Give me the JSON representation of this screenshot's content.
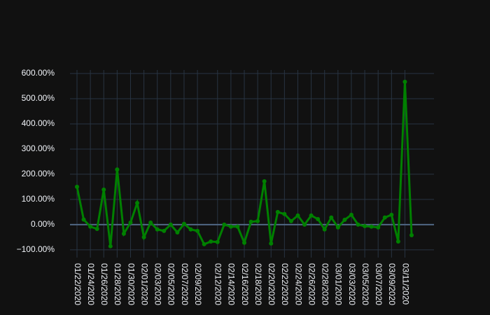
{
  "chart_data": {
    "type": "line",
    "x": [
      "01/22/2020",
      "01/23/2020",
      "01/24/2020",
      "01/25/2020",
      "01/26/2020",
      "01/27/2020",
      "01/28/2020",
      "01/29/2020",
      "01/30/2020",
      "01/31/2020",
      "02/01/2020",
      "02/02/2020",
      "02/03/2020",
      "02/04/2020",
      "02/05/2020",
      "02/06/2020",
      "02/07/2020",
      "02/08/2020",
      "02/09/2020",
      "02/10/2020",
      "02/11/2020",
      "02/12/2020",
      "02/13/2020",
      "02/14/2020",
      "02/15/2020",
      "02/16/2020",
      "02/17/2020",
      "02/18/2020",
      "02/19/2020",
      "02/20/2020",
      "02/21/2020",
      "02/22/2020",
      "02/23/2020",
      "02/24/2020",
      "02/25/2020",
      "02/26/2020",
      "02/27/2020",
      "02/28/2020",
      "02/29/2020",
      "03/01/2020",
      "03/02/2020",
      "03/03/2020",
      "03/04/2020",
      "03/05/2020",
      "03/06/2020",
      "03/07/2020",
      "03/08/2020",
      "03/09/2020",
      "03/10/2020",
      "03/11/2020",
      "03/12/2020"
    ],
    "series": [
      {
        "color": "#008000",
        "values": [
          150,
          20,
          -8,
          -17,
          139,
          -86,
          219,
          -36,
          8,
          86,
          -50,
          8,
          -19,
          -25,
          0,
          -31,
          3,
          -19,
          -25,
          -78,
          -67,
          -69,
          0,
          -8,
          -8,
          -72,
          11,
          14,
          172,
          -75,
          50,
          42,
          14,
          36,
          0,
          36,
          22,
          -19,
          28,
          -11,
          19,
          39,
          0,
          -6,
          -8,
          -11,
          28,
          39,
          -67,
          567,
          -42
        ]
      }
    ],
    "xticks": [
      "01/22/2020",
      "01/24/2020",
      "01/26/2020",
      "01/28/2020",
      "01/30/2020",
      "02/01/2020",
      "02/03/2020",
      "02/05/2020",
      "02/07/2020",
      "02/09/2020",
      "02/12/2020",
      "02/14/2020",
      "02/16/2020",
      "02/18/2020",
      "02/20/2020",
      "02/22/2020",
      "02/24/2020",
      "02/26/2020",
      "02/28/2020",
      "03/01/2020",
      "03/03/2020",
      "03/05/2020",
      "03/07/2020",
      "03/09/2020",
      "03/11/2020"
    ],
    "ylim": [
      -131,
      614
    ],
    "yticks": [
      {
        "value": -100,
        "label": "−100.00%"
      },
      {
        "value": 0,
        "label": "0.00%"
      },
      {
        "value": 100,
        "label": "100.00%"
      },
      {
        "value": 200,
        "label": "200.00%"
      },
      {
        "value": 300,
        "label": "300.00%"
      },
      {
        "value": 400,
        "label": "400.00%"
      },
      {
        "value": 500,
        "label": "500.00%"
      },
      {
        "value": 600,
        "label": "600.00%"
      }
    ],
    "grid": true
  }
}
